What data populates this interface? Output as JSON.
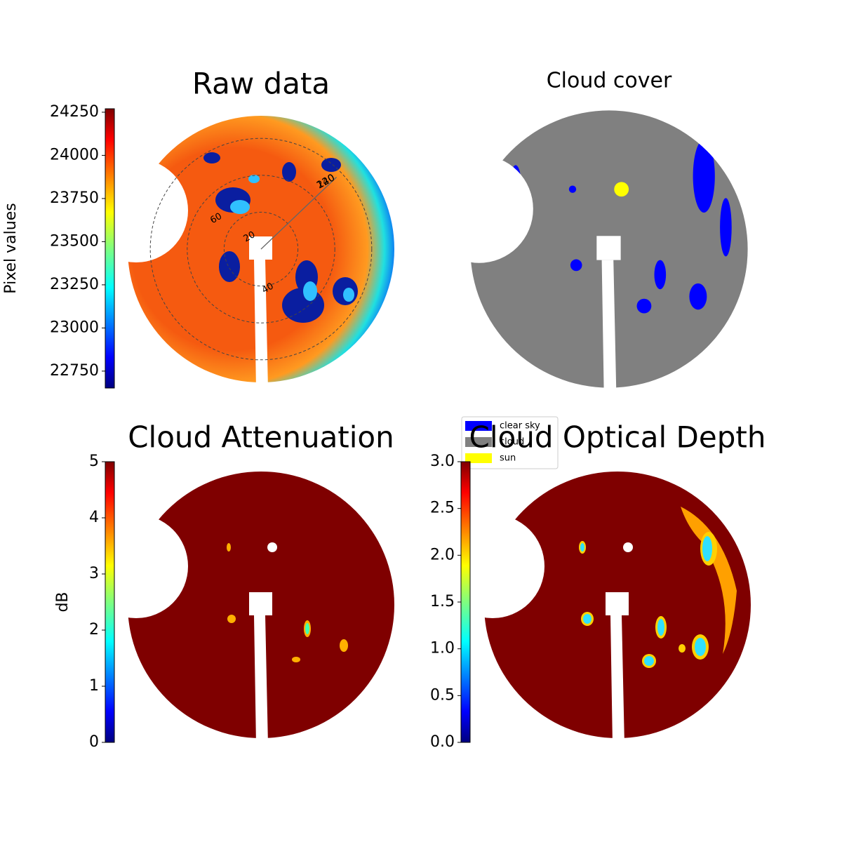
{
  "chart_data": [
    {
      "type": "image",
      "title": "Raw data",
      "ylabel": "Pixel values",
      "colormap": "jet",
      "ylim": [
        22652,
        24270
      ],
      "yticks": [
        22750,
        23000,
        23250,
        23500,
        23750,
        24000,
        24250
      ],
      "rticks": [
        20,
        40,
        60
      ],
      "angle_labels": [
        120,
        240
      ]
    },
    {
      "type": "image",
      "title": "Cloud cover",
      "legend": [
        {
          "name": "clear sky",
          "color": "#0000ff"
        },
        {
          "name": "cloud",
          "color": "#808080"
        },
        {
          "name": "sun",
          "color": "#ffff00"
        }
      ]
    },
    {
      "type": "image",
      "title": "Cloud Attenuation",
      "ylabel": "dB",
      "colormap": "jet",
      "ylim": [
        0,
        5
      ],
      "yticks": [
        0,
        1,
        2,
        3,
        4,
        5
      ]
    },
    {
      "type": "image",
      "title": "Cloud Optical Depth",
      "colormap": "jet",
      "ylim": [
        0,
        3
      ],
      "yticks": [
        {
          "value": 0,
          "label": "0.0"
        },
        0.5,
        {
          "value": 1,
          "label": "1.0"
        },
        1.5,
        {
          "value": 2,
          "label": "2.0"
        },
        2.5,
        {
          "value": 3,
          "label": "3.0"
        }
      ]
    }
  ]
}
